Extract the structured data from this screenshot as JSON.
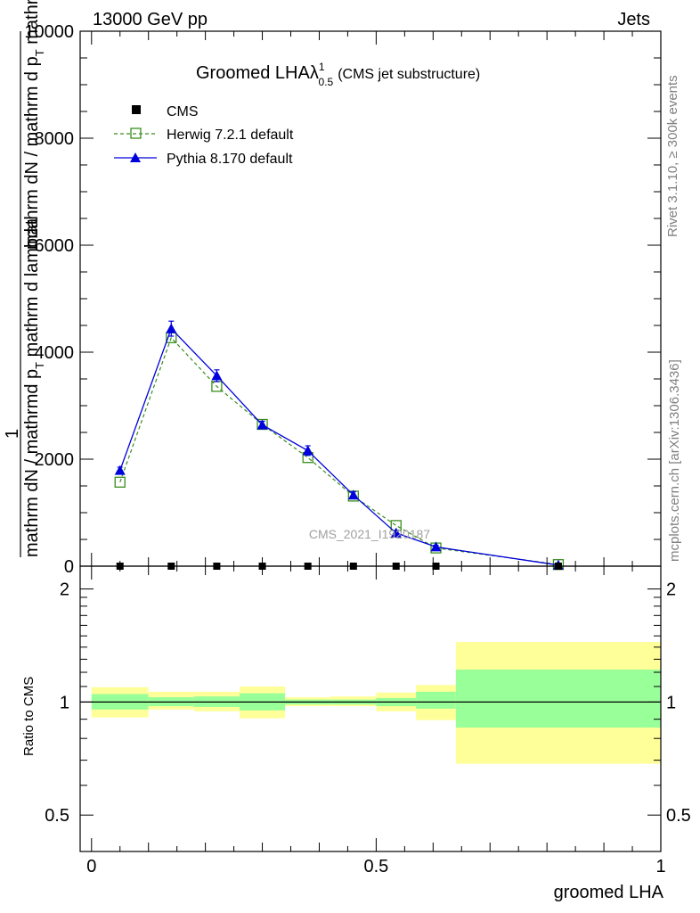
{
  "header": {
    "energy_label": "13000 GeV pp",
    "category_label": "Jets"
  },
  "side_labels": {
    "rivet": "Rivet 3.1.10, ≥ 300k events",
    "mcplots": "mcplots.cern.ch [arXiv:1306.3436]"
  },
  "watermark": "CMS_2021_I1920187",
  "chart_data": [
    {
      "type": "line",
      "panel": "main",
      "title": "Groomed LHA",
      "title_symbol": "λ",
      "title_sup": "1",
      "title_sub": "0.5",
      "title_note": "(CMS jet substructure)",
      "ylabel_numerator": "1",
      "ylabel_part1": "mathrm dN / mathrm d p",
      "ylabel_part1_sub": "T",
      "ylabel_part2": " mathrm d lambda",
      "ylabel_denominator": "mathrm dN / mathrmd p",
      "ylabel_denominator_sub": "T",
      "ylabel_denominator_rest": " mathrm d lambda",
      "ylim": [
        0,
        10000
      ],
      "xlim": [
        -0.02,
        1.0
      ],
      "yticks": [
        0,
        2000,
        4000,
        6000,
        8000,
        10000
      ],
      "ytick_labels": [
        "0",
        "2000",
        "4000",
        "6000",
        "8000",
        "10000"
      ],
      "bin_edges": [
        0,
        0.1,
        0.18,
        0.26,
        0.34,
        0.42,
        0.5,
        0.57,
        0.64,
        1.0
      ],
      "series": [
        {
          "name": "CMS",
          "style": "data",
          "color": "#000000",
          "x": [
            0.05,
            0.14,
            0.22,
            0.3,
            0.38,
            0.46,
            0.535,
            0.605,
            0.82
          ],
          "values": [
            0,
            0,
            0,
            0,
            0,
            0,
            0,
            0,
            0
          ]
        },
        {
          "name": "Herwig 7.2.1 default",
          "style": "open-square-dashed",
          "color": "#3a8e1e",
          "x": [
            0.05,
            0.14,
            0.22,
            0.3,
            0.38,
            0.46,
            0.535,
            0.605,
            0.82
          ],
          "values": [
            1570,
            4270,
            3360,
            2650,
            2030,
            1310,
            760,
            340,
            30
          ]
        },
        {
          "name": "Pythia 8.170 default",
          "style": "filled-triangle-solid",
          "color": "#0000dd",
          "x": [
            0.05,
            0.14,
            0.22,
            0.3,
            0.38,
            0.46,
            0.535,
            0.605,
            0.82
          ],
          "values": [
            1790,
            4440,
            3560,
            2640,
            2160,
            1330,
            620,
            360,
            20
          ],
          "errors": [
            60,
            140,
            110,
            70,
            90,
            60,
            40,
            30,
            5
          ]
        }
      ]
    },
    {
      "type": "area",
      "panel": "ratio",
      "ylabel": "Ratio to CMS",
      "xlabel": "groomed LHA",
      "ylim": [
        0.4,
        2.3
      ],
      "xlim": [
        -0.02,
        1.0
      ],
      "yticks": [
        0.5,
        1,
        2
      ],
      "ytick_labels": [
        "0.5",
        "1",
        "2"
      ],
      "xticks": [
        0,
        0.5,
        1
      ],
      "xtick_labels": [
        "0",
        "0.5",
        "1"
      ],
      "reference": 1,
      "bin_edges": [
        0,
        0.1,
        0.18,
        0.26,
        0.34,
        0.42,
        0.5,
        0.57,
        0.64,
        1.0
      ],
      "inner_band": {
        "color": "#99ff99",
        "lower": [
          0.955,
          0.975,
          0.97,
          0.95,
          0.985,
          0.985,
          0.975,
          0.96,
          0.855
        ],
        "upper": [
          1.05,
          1.03,
          1.035,
          1.055,
          1.015,
          1.015,
          1.025,
          1.065,
          1.22
        ]
      },
      "outer_band": {
        "color": "#ffff99",
        "lower": [
          0.91,
          0.955,
          0.945,
          0.905,
          0.975,
          0.975,
          0.945,
          0.895,
          0.685
        ],
        "upper": [
          1.095,
          1.065,
          1.065,
          1.1,
          1.03,
          1.035,
          1.06,
          1.11,
          1.445
        ]
      }
    }
  ]
}
